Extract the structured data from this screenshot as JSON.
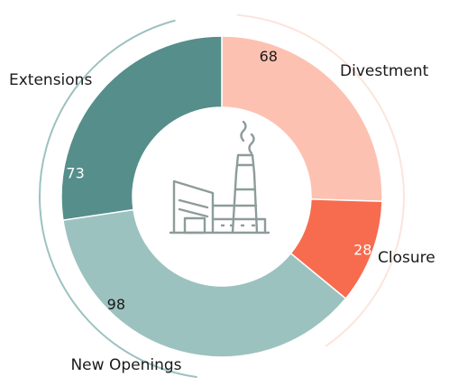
{
  "chart_data": {
    "type": "pie",
    "variant": "donut",
    "categories": [
      "Divestment",
      "Closure",
      "New Openings",
      "Extensions"
    ],
    "values": [
      68,
      28,
      98,
      73
    ],
    "colors": [
      "#fdc1b1",
      "#f76b4f",
      "#9cc2bf",
      "#558e8a"
    ],
    "value_label_colors": [
      "#1a1a1a",
      "#ffffff",
      "#1a1a1a",
      "#ffffff"
    ],
    "outer_arc_colors": [
      "#fde4dc",
      "#9cc2bf"
    ],
    "center_icon": "factory-icon",
    "title": "",
    "legend": "none"
  }
}
